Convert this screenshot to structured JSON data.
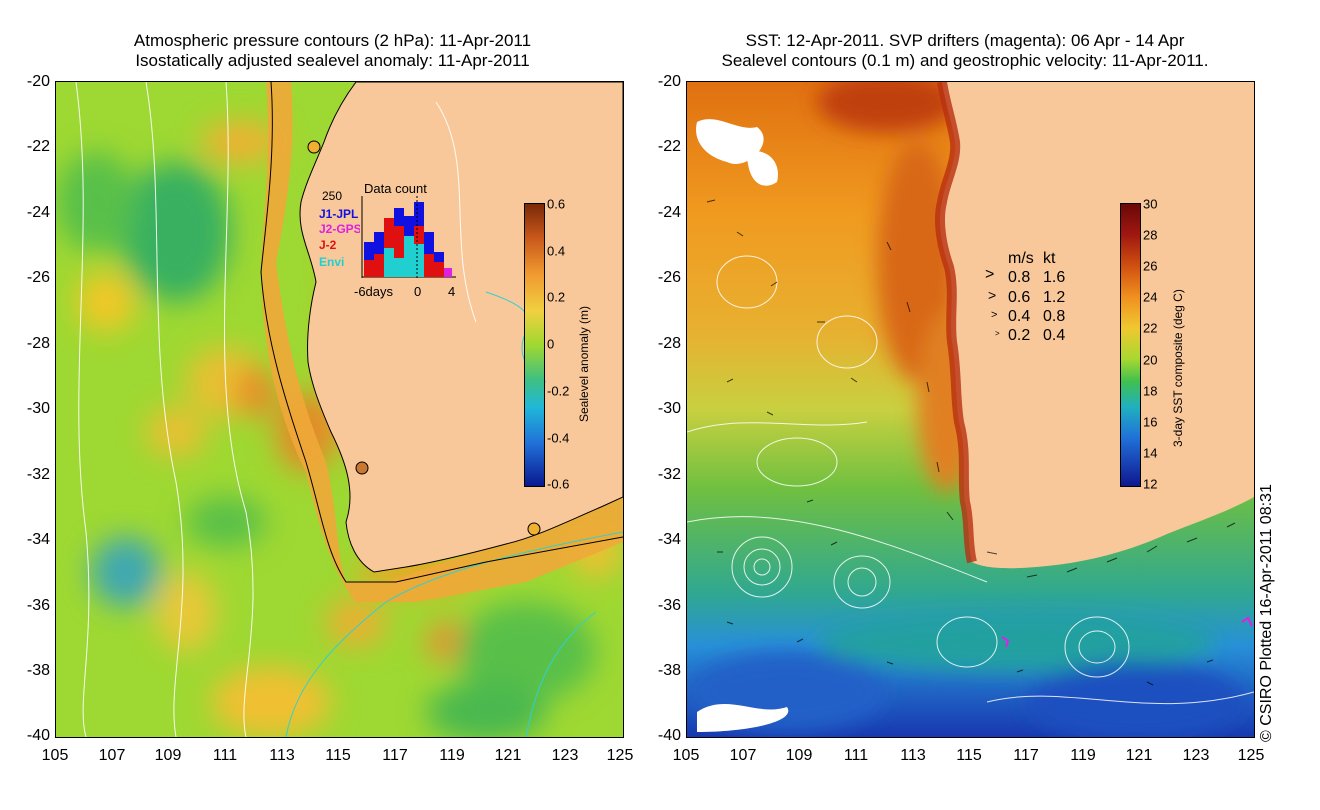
{
  "left_panel": {
    "title_line1": "Atmospheric pressure contours (2 hPa): 11-Apr-2011",
    "title_line2": "Isostatically adjusted sealevel anomaly: 11-Apr-2011",
    "colorbar_label": "Sealevel anomaly (m)",
    "colorbar_ticks": [
      "0.6",
      "0.4",
      "0.2",
      "0",
      "-0.2",
      "-0.4",
      "-0.6"
    ],
    "inset": {
      "title": "Data count",
      "ymax": "250",
      "series": [
        {
          "name": "J1-JPL",
          "color": "#1010e0"
        },
        {
          "name": "J2-GPS",
          "color": "#e020e0"
        },
        {
          "name": "J-2",
          "color": "#e01010"
        },
        {
          "name": "Envi",
          "color": "#20d0d0"
        }
      ],
      "xticks": [
        "-6days",
        "0",
        "4"
      ]
    }
  },
  "right_panel": {
    "title_line1": "SST: 12-Apr-2011. SVP drifters (magenta): 06 Apr - 14 Apr",
    "title_line2": "Sealevel contours (0.1 m) and geostrophic velocity: 11-Apr-2011.",
    "colorbar_label": "3-day SST composite (deg C)",
    "colorbar_ticks": [
      "30",
      "28",
      "26",
      "24",
      "22",
      "20",
      "18",
      "16",
      "14",
      "12"
    ],
    "velocity_legend": {
      "header_ms": "m/s",
      "header_kt": "kt",
      "rows": [
        {
          "ms": "0.8",
          "kt": "1.6"
        },
        {
          "ms": "0.6",
          "kt": "1.2"
        },
        {
          "ms": "0.4",
          "kt": "0.8"
        },
        {
          "ms": "0.2",
          "kt": "0.4"
        }
      ]
    }
  },
  "axes": {
    "lon_ticks": [
      "105",
      "107",
      "109",
      "111",
      "113",
      "115",
      "117",
      "119",
      "121",
      "123",
      "125"
    ],
    "lat_ticks": [
      "-20",
      "-22",
      "-24",
      "-26",
      "-28",
      "-30",
      "-32",
      "-34",
      "-36",
      "-38",
      "-40"
    ]
  },
  "credit": "© CSIRO Plotted 16-Apr-2011 08:31",
  "colors": {
    "land": "#f9c89a",
    "anomaly_high": "#b84a10",
    "anomaly_low": "#0a1890",
    "sst_high": "#8a0a0a",
    "sst_low": "#101890"
  }
}
